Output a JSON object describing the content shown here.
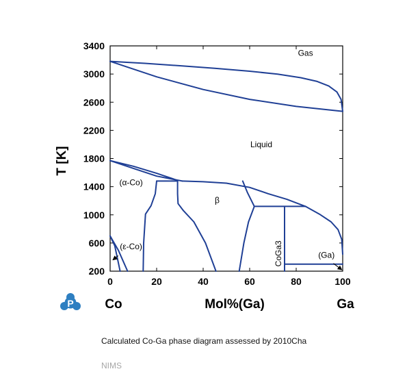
{
  "chart_data": {
    "type": "phase-diagram",
    "xlabel": "Mol%(Ga)",
    "ylabel": "T [K]",
    "xlim": [
      0,
      100
    ],
    "ylim": [
      200,
      3400
    ],
    "x_ticks": [
      0,
      20,
      40,
      60,
      80,
      100
    ],
    "y_ticks": [
      200,
      600,
      1000,
      1400,
      1800,
      2200,
      2600,
      3000,
      3400
    ],
    "left_element": "Co",
    "right_element": "Ga",
    "line_color": "#1f3f95",
    "region_labels": [
      {
        "text": "Gas",
        "x": 84,
        "y": 3260
      },
      {
        "text": "Liquid",
        "x": 65,
        "y": 1960
      },
      {
        "text": "(α-Co)",
        "x": 9,
        "y": 1420
      },
      {
        "text": "β",
        "x": 46,
        "y": 1170
      },
      {
        "text": "(ε-Co)",
        "x": 9,
        "y": 510
      },
      {
        "text": "CoGa3",
        "x": 73.5,
        "y": 450,
        "rotate": -90
      },
      {
        "text": "(Ga)",
        "x": 93,
        "y": 390
      }
    ],
    "series": [
      {
        "points": [
          [
            0,
            3180
          ],
          [
            15,
            3152
          ],
          [
            30,
            3118
          ],
          [
            45,
            3082
          ],
          [
            60,
            3040
          ],
          [
            72,
            2998
          ],
          [
            82,
            2948
          ],
          [
            89,
            2895
          ],
          [
            94,
            2830
          ],
          [
            97.5,
            2745
          ],
          [
            99.3,
            2640
          ],
          [
            100,
            2470
          ]
        ]
      },
      {
        "points": [
          [
            0,
            3180
          ],
          [
            20,
            2960
          ],
          [
            40,
            2780
          ],
          [
            60,
            2640
          ],
          [
            80,
            2540
          ],
          [
            100,
            2470
          ]
        ]
      },
      {
        "points": [
          [
            0,
            1770
          ],
          [
            10,
            1660
          ],
          [
            20,
            1550
          ],
          [
            31,
            1480
          ]
        ]
      },
      {
        "points": [
          [
            0,
            1770
          ],
          [
            10,
            1690
          ],
          [
            20,
            1590
          ],
          [
            29,
            1490
          ]
        ]
      },
      {
        "points": [
          [
            20,
            1480
          ],
          [
            29,
            1480
          ]
        ]
      },
      {
        "points": [
          [
            31,
            1480
          ],
          [
            40,
            1470
          ],
          [
            50,
            1450
          ],
          [
            60,
            1390
          ],
          [
            68,
            1300
          ],
          [
            76,
            1220
          ],
          [
            84,
            1120
          ]
        ]
      },
      {
        "points": [
          [
            84,
            1120
          ],
          [
            90,
            1010
          ],
          [
            95,
            900
          ],
          [
            98,
            790
          ],
          [
            99.6,
            650
          ],
          [
            100,
            440
          ]
        ]
      },
      {
        "points": [
          [
            20,
            1480
          ],
          [
            19.4,
            1300
          ],
          [
            17.6,
            1130
          ],
          [
            15.2,
            1010
          ],
          [
            14.4,
            600
          ],
          [
            14.2,
            200
          ]
        ]
      },
      {
        "points": [
          [
            29,
            1480
          ],
          [
            29,
            1300
          ],
          [
            29.2,
            1160
          ],
          [
            31.5,
            1060
          ],
          [
            36,
            900
          ],
          [
            41,
            600
          ],
          [
            45.5,
            200
          ]
        ]
      },
      {
        "points": [
          [
            57,
            1480
          ],
          [
            59,
            1320
          ],
          [
            62,
            1120
          ]
        ]
      },
      {
        "points": [
          [
            62,
            1120
          ],
          [
            59.5,
            900
          ],
          [
            57.5,
            600
          ],
          [
            55.5,
            200
          ]
        ]
      },
      {
        "points": [
          [
            62,
            1120
          ],
          [
            84,
            1120
          ]
        ]
      },
      {
        "points": [
          [
            75,
            1120
          ],
          [
            75,
            200
          ]
        ]
      },
      {
        "points": [
          [
            75,
            300
          ],
          [
            100,
            300
          ]
        ]
      },
      {
        "points": [
          [
            0,
            700
          ],
          [
            2,
            560
          ],
          [
            4.3,
            200
          ]
        ]
      },
      {
        "points": [
          [
            0,
            700
          ],
          [
            3.5,
            500
          ],
          [
            7.5,
            200
          ]
        ]
      }
    ],
    "arrows": [
      {
        "from": [
          3.5,
          420
        ],
        "to": [
          1.2,
          360
        ]
      },
      {
        "from": [
          96,
          310
        ],
        "to": [
          99.6,
          220
        ]
      }
    ]
  },
  "caption": "Calculated Co-Ga phase diagram assessed by 2010Cha",
  "source": "NIMS",
  "logo": {
    "letter": "P",
    "color": "#2e7fc1"
  }
}
